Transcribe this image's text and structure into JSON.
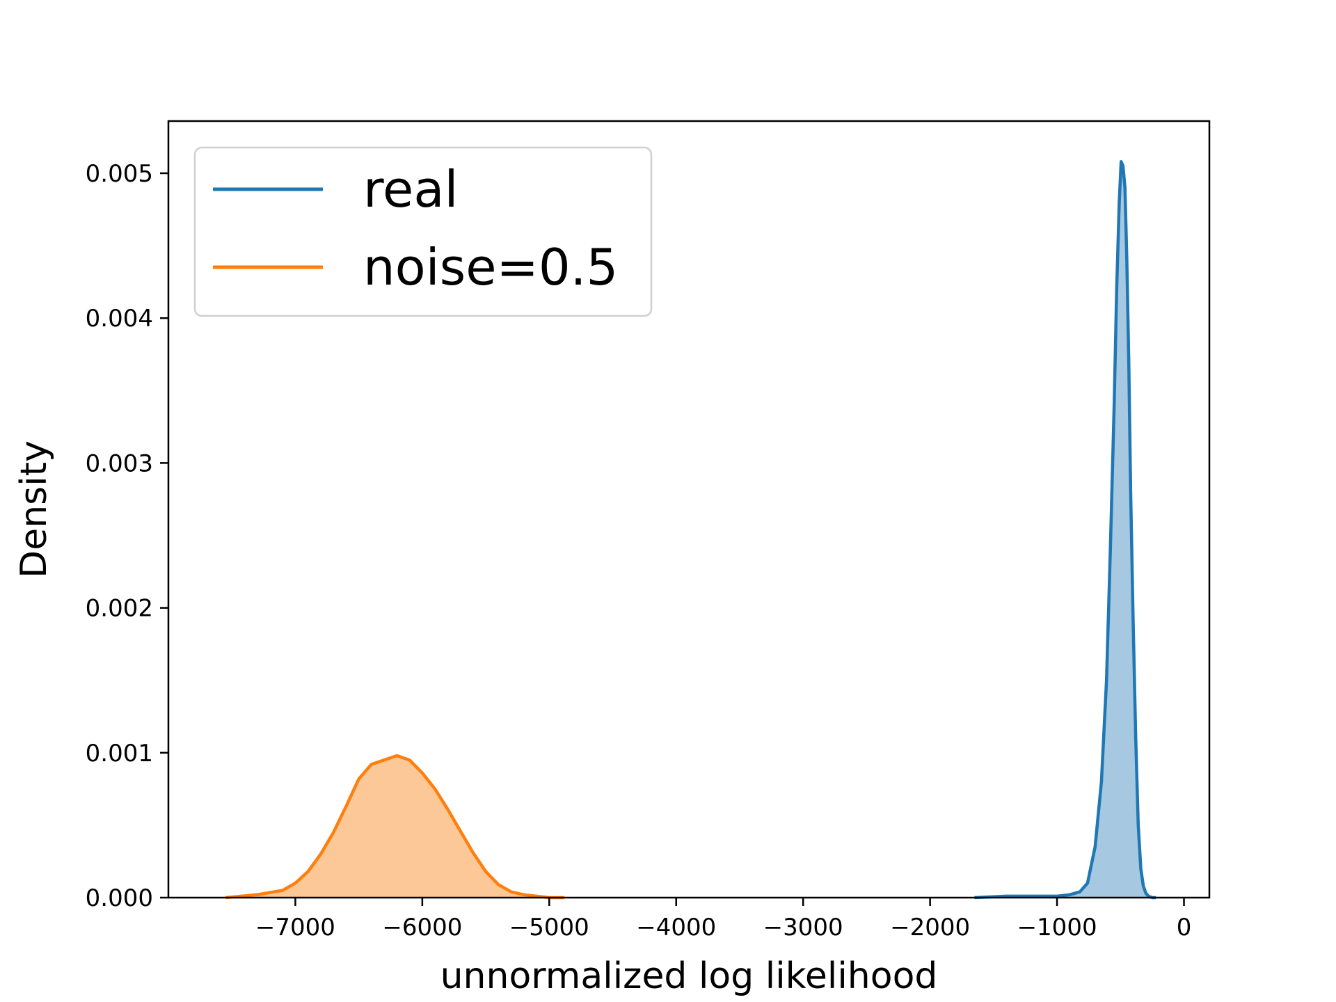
{
  "chart_data": {
    "type": "area",
    "title": "",
    "xlabel": "unnormalized log likelihood",
    "ylabel": "Density",
    "xlim": [
      -8000,
      200
    ],
    "ylim": [
      0,
      0.00536
    ],
    "xticks": [
      -7000,
      -6000,
      -5000,
      -4000,
      -3000,
      -2000,
      -1000,
      0
    ],
    "xtick_labels": [
      "−7000",
      "−6000",
      "−5000",
      "−4000",
      "−3000",
      "−2000",
      "−1000",
      "0"
    ],
    "yticks": [
      0.0,
      0.001,
      0.002,
      0.003,
      0.004,
      0.005
    ],
    "ytick_labels": [
      "0.000",
      "0.001",
      "0.002",
      "0.003",
      "0.004",
      "0.005"
    ],
    "grid": false,
    "legend_position": "top-left",
    "series": [
      {
        "name": "real",
        "color": "#1f77b4",
        "fill": "#a6c8e0",
        "x": [
          -1650,
          -1400,
          -1200,
          -1000,
          -900,
          -820,
          -760,
          -700,
          -650,
          -610,
          -580,
          -550,
          -530,
          -510,
          -495,
          -480,
          -465,
          -450,
          -435,
          -420,
          -400,
          -380,
          -360,
          -340,
          -320,
          -300,
          -280,
          -250,
          -220
        ],
        "y": [
          0.0,
          1e-05,
          1e-05,
          1e-05,
          2e-05,
          4e-05,
          0.0001,
          0.00035,
          0.0008,
          0.0015,
          0.0024,
          0.0034,
          0.0042,
          0.0048,
          0.00508,
          0.00505,
          0.0049,
          0.0044,
          0.0037,
          0.0028,
          0.0019,
          0.0011,
          0.0005,
          0.0002,
          8e-05,
          3e-05,
          1e-05,
          0.0,
          0.0
        ]
      },
      {
        "name": "noise=0.5",
        "color": "#ff7f0e",
        "fill": "#fdc898",
        "x": [
          -7550,
          -7300,
          -7100,
          -7000,
          -6900,
          -6800,
          -6700,
          -6600,
          -6500,
          -6400,
          -6300,
          -6200,
          -6100,
          -6000,
          -5900,
          -5800,
          -5700,
          -5600,
          -5500,
          -5400,
          -5300,
          -5200,
          -5100,
          -5000,
          -4880
        ],
        "y": [
          0.0,
          2e-05,
          5e-05,
          0.0001,
          0.00018,
          0.0003,
          0.00045,
          0.00063,
          0.00082,
          0.00092,
          0.00095,
          0.00098,
          0.00095,
          0.00086,
          0.00075,
          0.00061,
          0.00046,
          0.00031,
          0.00018,
          9e-05,
          4e-05,
          2e-05,
          1e-05,
          0.0,
          0.0
        ]
      }
    ]
  }
}
